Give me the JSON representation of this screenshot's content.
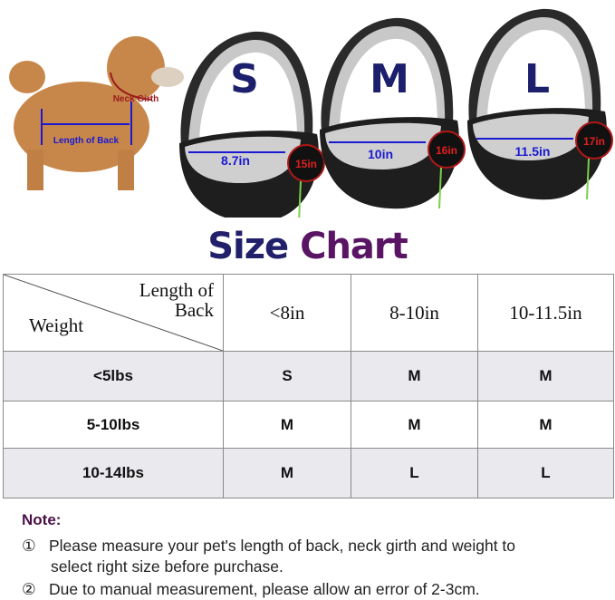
{
  "hero": {
    "dog_labels": {
      "neck_girth": "Neck Girth",
      "length_of_back": "Length of Back"
    },
    "bags": [
      {
        "size": "S",
        "length": "8.7in",
        "neck": "15in"
      },
      {
        "size": "M",
        "length": "10in",
        "neck": "16in"
      },
      {
        "size": "L",
        "length": "11.5in",
        "neck": "17in"
      }
    ],
    "colors": {
      "size_letter": "#1c1f6b",
      "measure_line": "#1a1ad0",
      "neck_ring": "#b01818"
    }
  },
  "title": {
    "part1": "Size",
    "part2": "Chart"
  },
  "table": {
    "corner": {
      "top": "Length of Back",
      "bottom": "Weight"
    },
    "columns": [
      "<8in",
      "8-10in",
      "10-11.5in"
    ],
    "rows": [
      {
        "weight": "<5lbs",
        "sizes": [
          "S",
          "M",
          "M"
        ]
      },
      {
        "weight": "5-10lbs",
        "sizes": [
          "M",
          "M",
          "M"
        ]
      },
      {
        "weight": "10-14lbs",
        "sizes": [
          "M",
          "L",
          "L"
        ]
      }
    ]
  },
  "note": {
    "heading": "Note:",
    "items": [
      {
        "marker": "①",
        "text": "Please measure your pet's length of back, neck girth and weight to",
        "text_cont": "select right size before purchase."
      },
      {
        "marker": "②",
        "text": "Due to manual measurement, please allow an error of 2-3cm."
      }
    ]
  }
}
